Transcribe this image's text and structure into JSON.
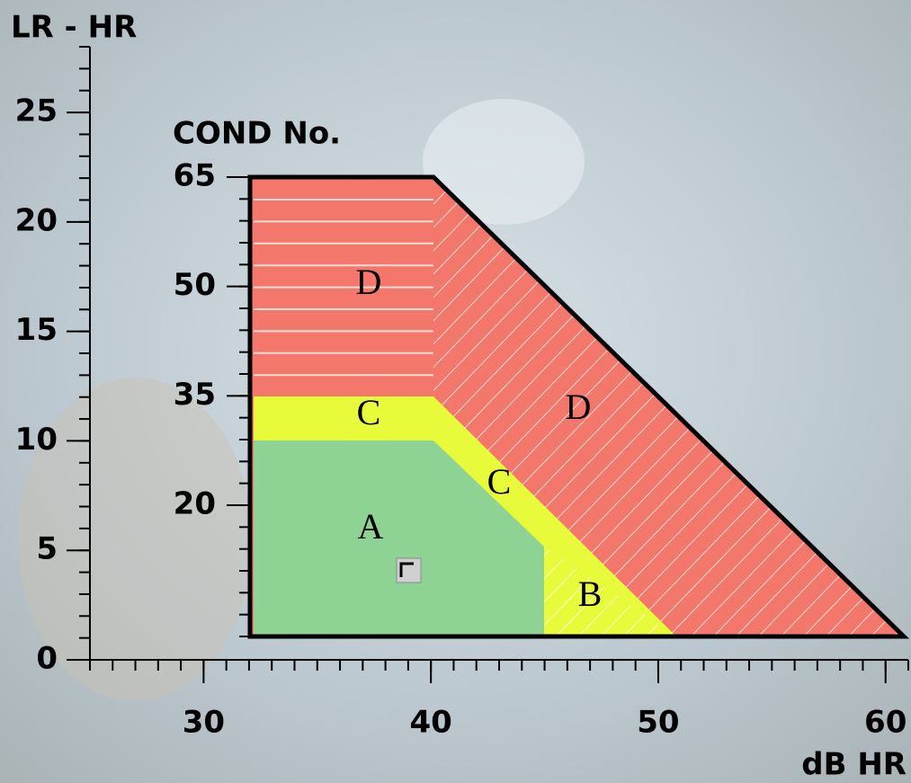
{
  "chart_data": {
    "type": "zone",
    "y_label": "LR - HR",
    "x_label": "dB HR",
    "y2_label": "COND No.",
    "xlim": [
      25,
      61
    ],
    "xticks": [
      30,
      40,
      50,
      60
    ],
    "ylim": [
      0,
      28
    ],
    "yticks": [
      0,
      5,
      10,
      15,
      20,
      25
    ],
    "y2lim": [
      2,
      65
    ],
    "y2ticks": [
      20,
      35,
      50,
      65
    ],
    "zone_labels": [
      "D",
      "D",
      "C",
      "C",
      "A",
      "B"
    ]
  }
}
